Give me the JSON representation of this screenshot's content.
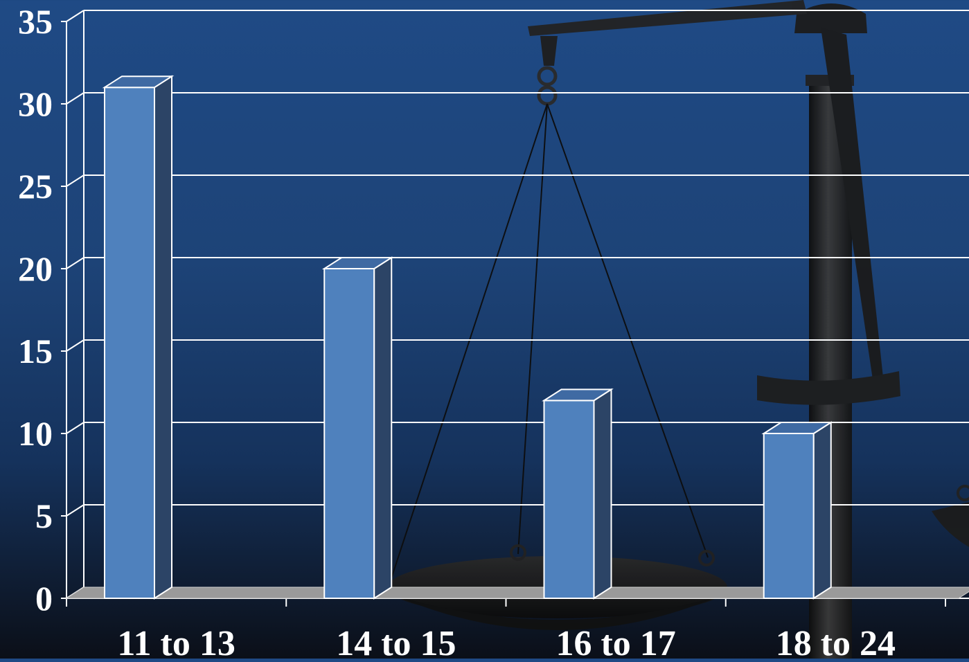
{
  "chart_data": {
    "type": "bar",
    "title": "",
    "xlabel": "",
    "ylabel": "",
    "categories": [
      "11 to 13",
      "14 to 15",
      "16 to 17",
      "18 to 24"
    ],
    "values": [
      31,
      20,
      12,
      10
    ],
    "ylim": [
      0,
      35
    ],
    "yticks": [
      0,
      5,
      10,
      15,
      20,
      25,
      30,
      35
    ],
    "grid": true,
    "legend": "none",
    "style": "3d-column"
  },
  "colors": {
    "bar_front": "#4f81bd",
    "bar_top": "#3f6aa3",
    "bar_side": "#2c4466",
    "floor": "#9a9a9a",
    "grid": "#ffffff",
    "text": "#ffffff"
  },
  "background_image": "scales-of-justice"
}
